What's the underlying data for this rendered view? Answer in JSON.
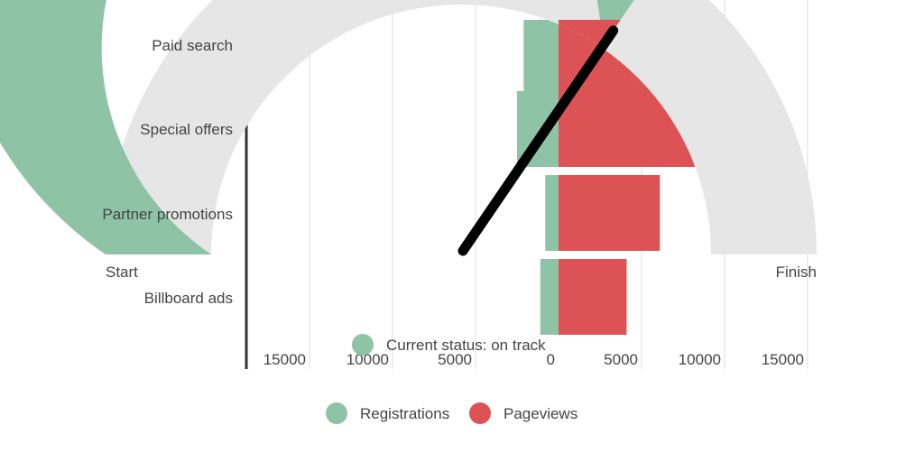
{
  "chart_data": [
    {
      "type": "bar",
      "orientation": "horizontal",
      "categories": [
        "Paid search",
        "Special offers",
        "Partner promotions",
        "Billboard ads"
      ],
      "series": [
        {
          "name": "Registrations",
          "color": "#8fc3a5",
          "values": [
            -2100,
            -2500,
            -800,
            -1100
          ]
        },
        {
          "name": "Pageviews",
          "color": "#dd5355",
          "values": [
            6200,
            8200,
            6100,
            4100
          ]
        }
      ],
      "xlim": [
        -17000,
        17000
      ],
      "xticks": [
        -15000,
        -10000,
        -5000,
        0,
        5000,
        10000,
        15000
      ],
      "xtick_labels": [
        "15000",
        "10000",
        "5000",
        "0",
        "5000",
        "10000",
        "15000"
      ],
      "grid": true,
      "legend": "bottom-center",
      "title": "",
      "xlabel": "",
      "ylabel": ""
    },
    {
      "type": "gauge",
      "min_label": "Start",
      "max_label": "Finish",
      "progress": 0.69,
      "needle": 0.69,
      "colors": {
        "filled": "#8fc3a5",
        "overflow": "#dd5355",
        "empty": "#e6e6e6",
        "needle": "#000000"
      },
      "status_label": "Current status: on track"
    }
  ],
  "legend": {
    "items": [
      {
        "label": "Registrations",
        "color": "#8fc3a5"
      },
      {
        "label": "Pageviews",
        "color": "#dd5355"
      }
    ]
  }
}
